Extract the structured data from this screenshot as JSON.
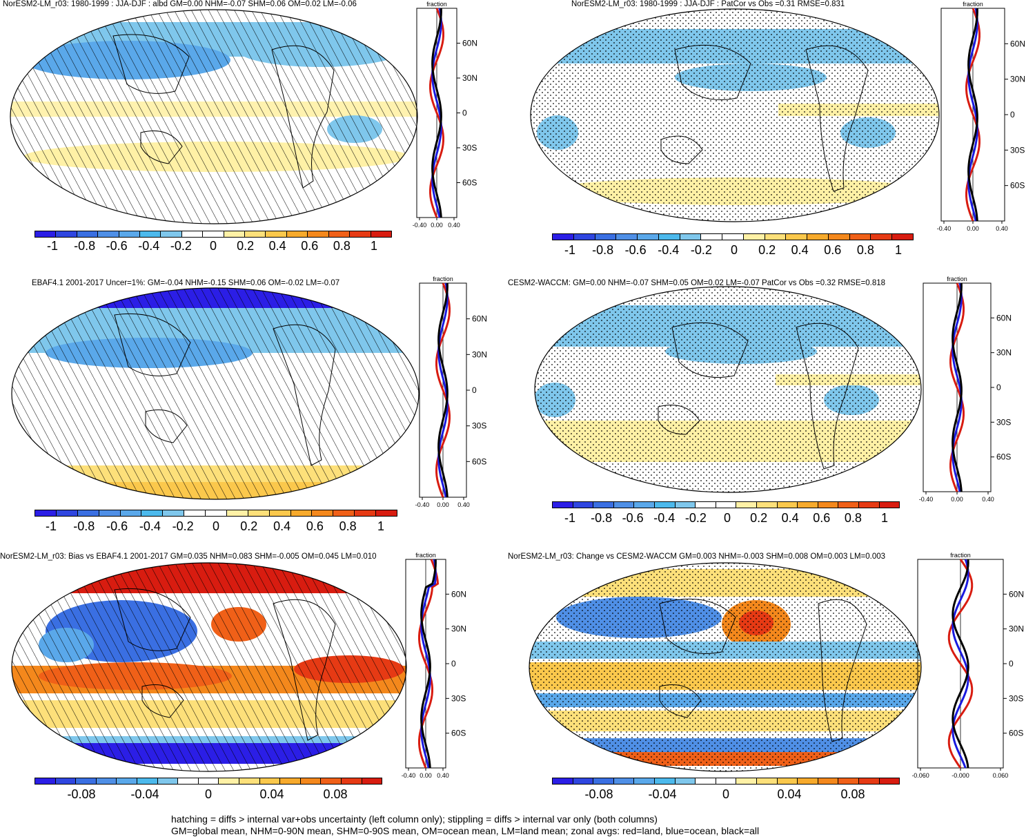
{
  "panels": [
    {
      "title": "NorESM2-LM_r03: 1980-1999 : JJA-DJF : albd GM=0.00 NHM=-0.07 SHM=0.06 OM=0.02 LM=-0.06",
      "cbar_ticks": [
        "-1",
        "-0.8",
        "-0.6",
        "-0.4",
        "-0.2",
        "0",
        "0.2",
        "0.4",
        "0.6",
        "0.8",
        "1"
      ],
      "zonal_xticks": [
        "-0.40",
        "0.00",
        "0.40"
      ],
      "palette": "main",
      "hatch": true,
      "stipple": false
    },
    {
      "title": "NorESM2-LM_r03: 1980-1999 : JJA-DJF : PatCor vs Obs =0.31 RMSE=0.831",
      "cbar_ticks": [
        "-1",
        "-0.8",
        "-0.6",
        "-0.4",
        "-0.2",
        "0",
        "0.2",
        "0.4",
        "0.6",
        "0.8",
        "1"
      ],
      "zonal_xticks": [
        "-0.40",
        "0.00",
        "0.40"
      ],
      "palette": "main",
      "hatch": false,
      "stipple": true
    },
    {
      "title": "EBAF4.1 2001-2017 Uncer=1%: GM=-0.04 NHM=-0.15 SHM=0.06 OM=-0.02 LM=-0.07",
      "cbar_ticks": [
        "-1",
        "-0.8",
        "-0.6",
        "-0.4",
        "-0.2",
        "0",
        "0.2",
        "0.4",
        "0.6",
        "0.8",
        "1"
      ],
      "zonal_xticks": [
        "-0.40",
        "0.00",
        "0.40"
      ],
      "palette": "main",
      "hatch": true,
      "stipple": false
    },
    {
      "title": "CESM2-WACCM: GM=0.00 NHM=-0.07 SHM=0.05 OM=0.02 LM=-0.07 PatCor vs Obs =0.32 RMSE=0.818",
      "cbar_ticks": [
        "-1",
        "-0.8",
        "-0.6",
        "-0.4",
        "-0.2",
        "0",
        "0.2",
        "0.4",
        "0.6",
        "0.8",
        "1"
      ],
      "zonal_xticks": [
        "-0.40",
        "0.00",
        "0.40"
      ],
      "palette": "main",
      "hatch": false,
      "stipple": true
    },
    {
      "title": "NorESM2-LM_r03: Bias vs EBAF4.1 2001-2017 GM=0.035 NHM=0.083 SHM=-0.005 OM=0.045 LM=0.010",
      "cbar_ticks": [
        "-0.08",
        "-0.04",
        "0",
        "0.04",
        "0.08"
      ],
      "zonal_xticks": [
        "-0.40",
        "0.00",
        "0.40"
      ],
      "palette": "diff",
      "hatch": true,
      "stipple": false
    },
    {
      "title": "NorESM2-LM_r03: Change vs CESM2-WACCM GM=0.003 NHM=-0.003 SHM=0.008 OM=0.003 LM=0.003",
      "cbar_ticks": [
        "-0.08",
        "-0.04",
        "0",
        "0.04",
        "0.08"
      ],
      "zonal_xticks": [
        "-0.060",
        "-0.000",
        "0.060"
      ],
      "palette": "diff",
      "hatch": false,
      "stipple": true
    }
  ],
  "zonal_axis": {
    "label": "fraction",
    "lat_ticks": [
      "60N",
      "30N",
      "0",
      "30S",
      "60S"
    ]
  },
  "colors": {
    "palette_main": [
      "#2b1ee6",
      "#2f46e0",
      "#3a6fe2",
      "#4f8fe6",
      "#5aa8ea",
      "#4cb9ec",
      "#7fc7ec",
      "#ffffff",
      "#ffffff",
      "#fff1a6",
      "#fde07a",
      "#fbc84c",
      "#f7aa2c",
      "#f4881c",
      "#f06018",
      "#e63a14",
      "#d81c10"
    ],
    "palette_diff": [
      "#2b1ee6",
      "#2f46e0",
      "#3a6fe2",
      "#4f8fe6",
      "#5aa8ea",
      "#4cb9ec",
      "#7fc7ec",
      "#ffffff",
      "#ffffff",
      "#fff1a6",
      "#fde07a",
      "#fbc84c",
      "#f7aa2c",
      "#f4881c",
      "#f06018",
      "#e63a14",
      "#d81c10"
    ],
    "land_line": "#d81c10",
    "ocean_line": "#1a1adf",
    "all_line": "#000000"
  },
  "footer": {
    "line1": "hatching = diffs > internal var+obs uncertainty (left column only); stippling = diffs > internal var only (both columns)",
    "line2": "GM=global mean, NHM=0-90N mean, SHM=0-90S mean, OM=ocean mean, LM=land mean; zonal avgs: red=land, blue=ocean, black=all"
  }
}
